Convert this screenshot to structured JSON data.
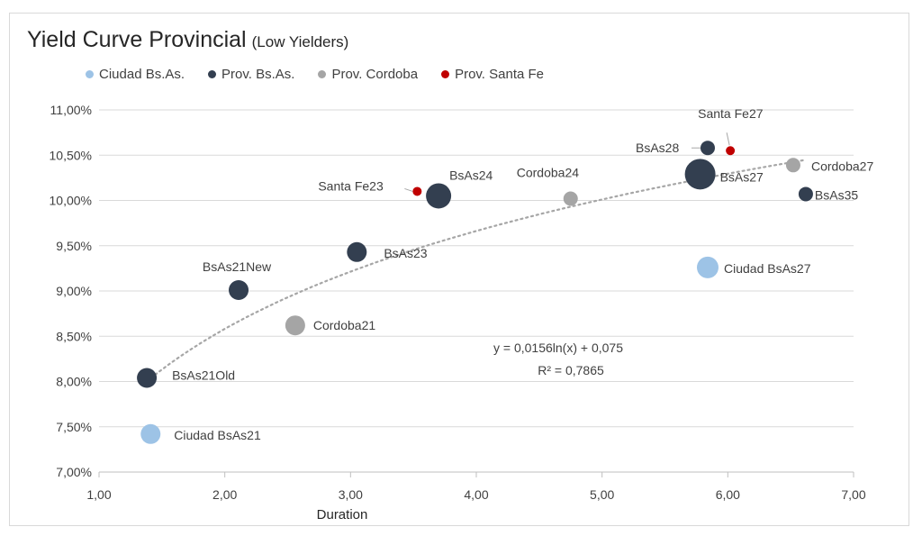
{
  "chart_data": {
    "type": "scatter",
    "title": "Yield Curve Provincial",
    "subtitle": "(Low Yielders)",
    "xlabel": "Duration",
    "ylabel": "",
    "xlim": [
      1.0,
      7.0
    ],
    "ylim": [
      7.0,
      11.0
    ],
    "x_ticks": [
      "1,00",
      "2,00",
      "3,00",
      "4,00",
      "5,00",
      "6,00",
      "7,00"
    ],
    "y_ticks": [
      "7,00%",
      "7,50%",
      "8,00%",
      "8,50%",
      "9,00%",
      "9,50%",
      "10,00%",
      "10,50%",
      "11,00%"
    ],
    "grid": "horizontal",
    "legend_position": "top",
    "series": [
      {
        "name": "Ciudad Bs.As.",
        "color": "#9dc3e6",
        "points": [
          {
            "label": "Ciudad BsAs21",
            "x": 1.41,
            "y": 7.42,
            "size": "medium"
          },
          {
            "label": "Ciudad BsAs27",
            "x": 5.84,
            "y": 9.26,
            "size": "large"
          }
        ]
      },
      {
        "name": "Prov. Bs.As.",
        "color": "#333f50",
        "points": [
          {
            "label": "BsAs21Old",
            "x": 1.38,
            "y": 8.04,
            "size": "medium"
          },
          {
            "label": "BsAs21New",
            "x": 2.11,
            "y": 9.01,
            "size": "medium"
          },
          {
            "label": "BsAs23",
            "x": 3.05,
            "y": 9.43,
            "size": "medium"
          },
          {
            "label": "BsAs24",
            "x": 3.7,
            "y": 10.05,
            "size": "xlarge"
          },
          {
            "label": "BsAs28",
            "x": 5.84,
            "y": 10.58,
            "size": "small"
          },
          {
            "label": "BsAs27",
            "x": 5.78,
            "y": 10.29,
            "size": "xxlarge"
          },
          {
            "label": "BsAs35",
            "x": 6.62,
            "y": 10.07,
            "size": "small"
          }
        ]
      },
      {
        "name": "Prov. Cordoba",
        "color": "#a5a5a5",
        "points": [
          {
            "label": "Cordoba21",
            "x": 2.56,
            "y": 8.62,
            "size": "medium"
          },
          {
            "label": "Cordoba24",
            "x": 4.75,
            "y": 10.02,
            "size": "small"
          },
          {
            "label": "Cordoba27",
            "x": 6.52,
            "y": 10.39,
            "size": "small"
          }
        ]
      },
      {
        "name": "Prov. Santa Fe",
        "color": "#c00000",
        "points": [
          {
            "label": "Santa Fe23",
            "x": 3.53,
            "y": 10.1,
            "size": "tiny"
          },
          {
            "label": "Santa Fe27",
            "x": 6.02,
            "y": 10.55,
            "size": "tiny"
          }
        ]
      }
    ],
    "trendline": {
      "type": "logarithmic",
      "a": 0.0156,
      "b": 0.075,
      "x_range": [
        1.38,
        6.6
      ],
      "equation": "y = 0,0156ln(x) + 0,075",
      "r_squared": "R² = 0,7865"
    }
  }
}
